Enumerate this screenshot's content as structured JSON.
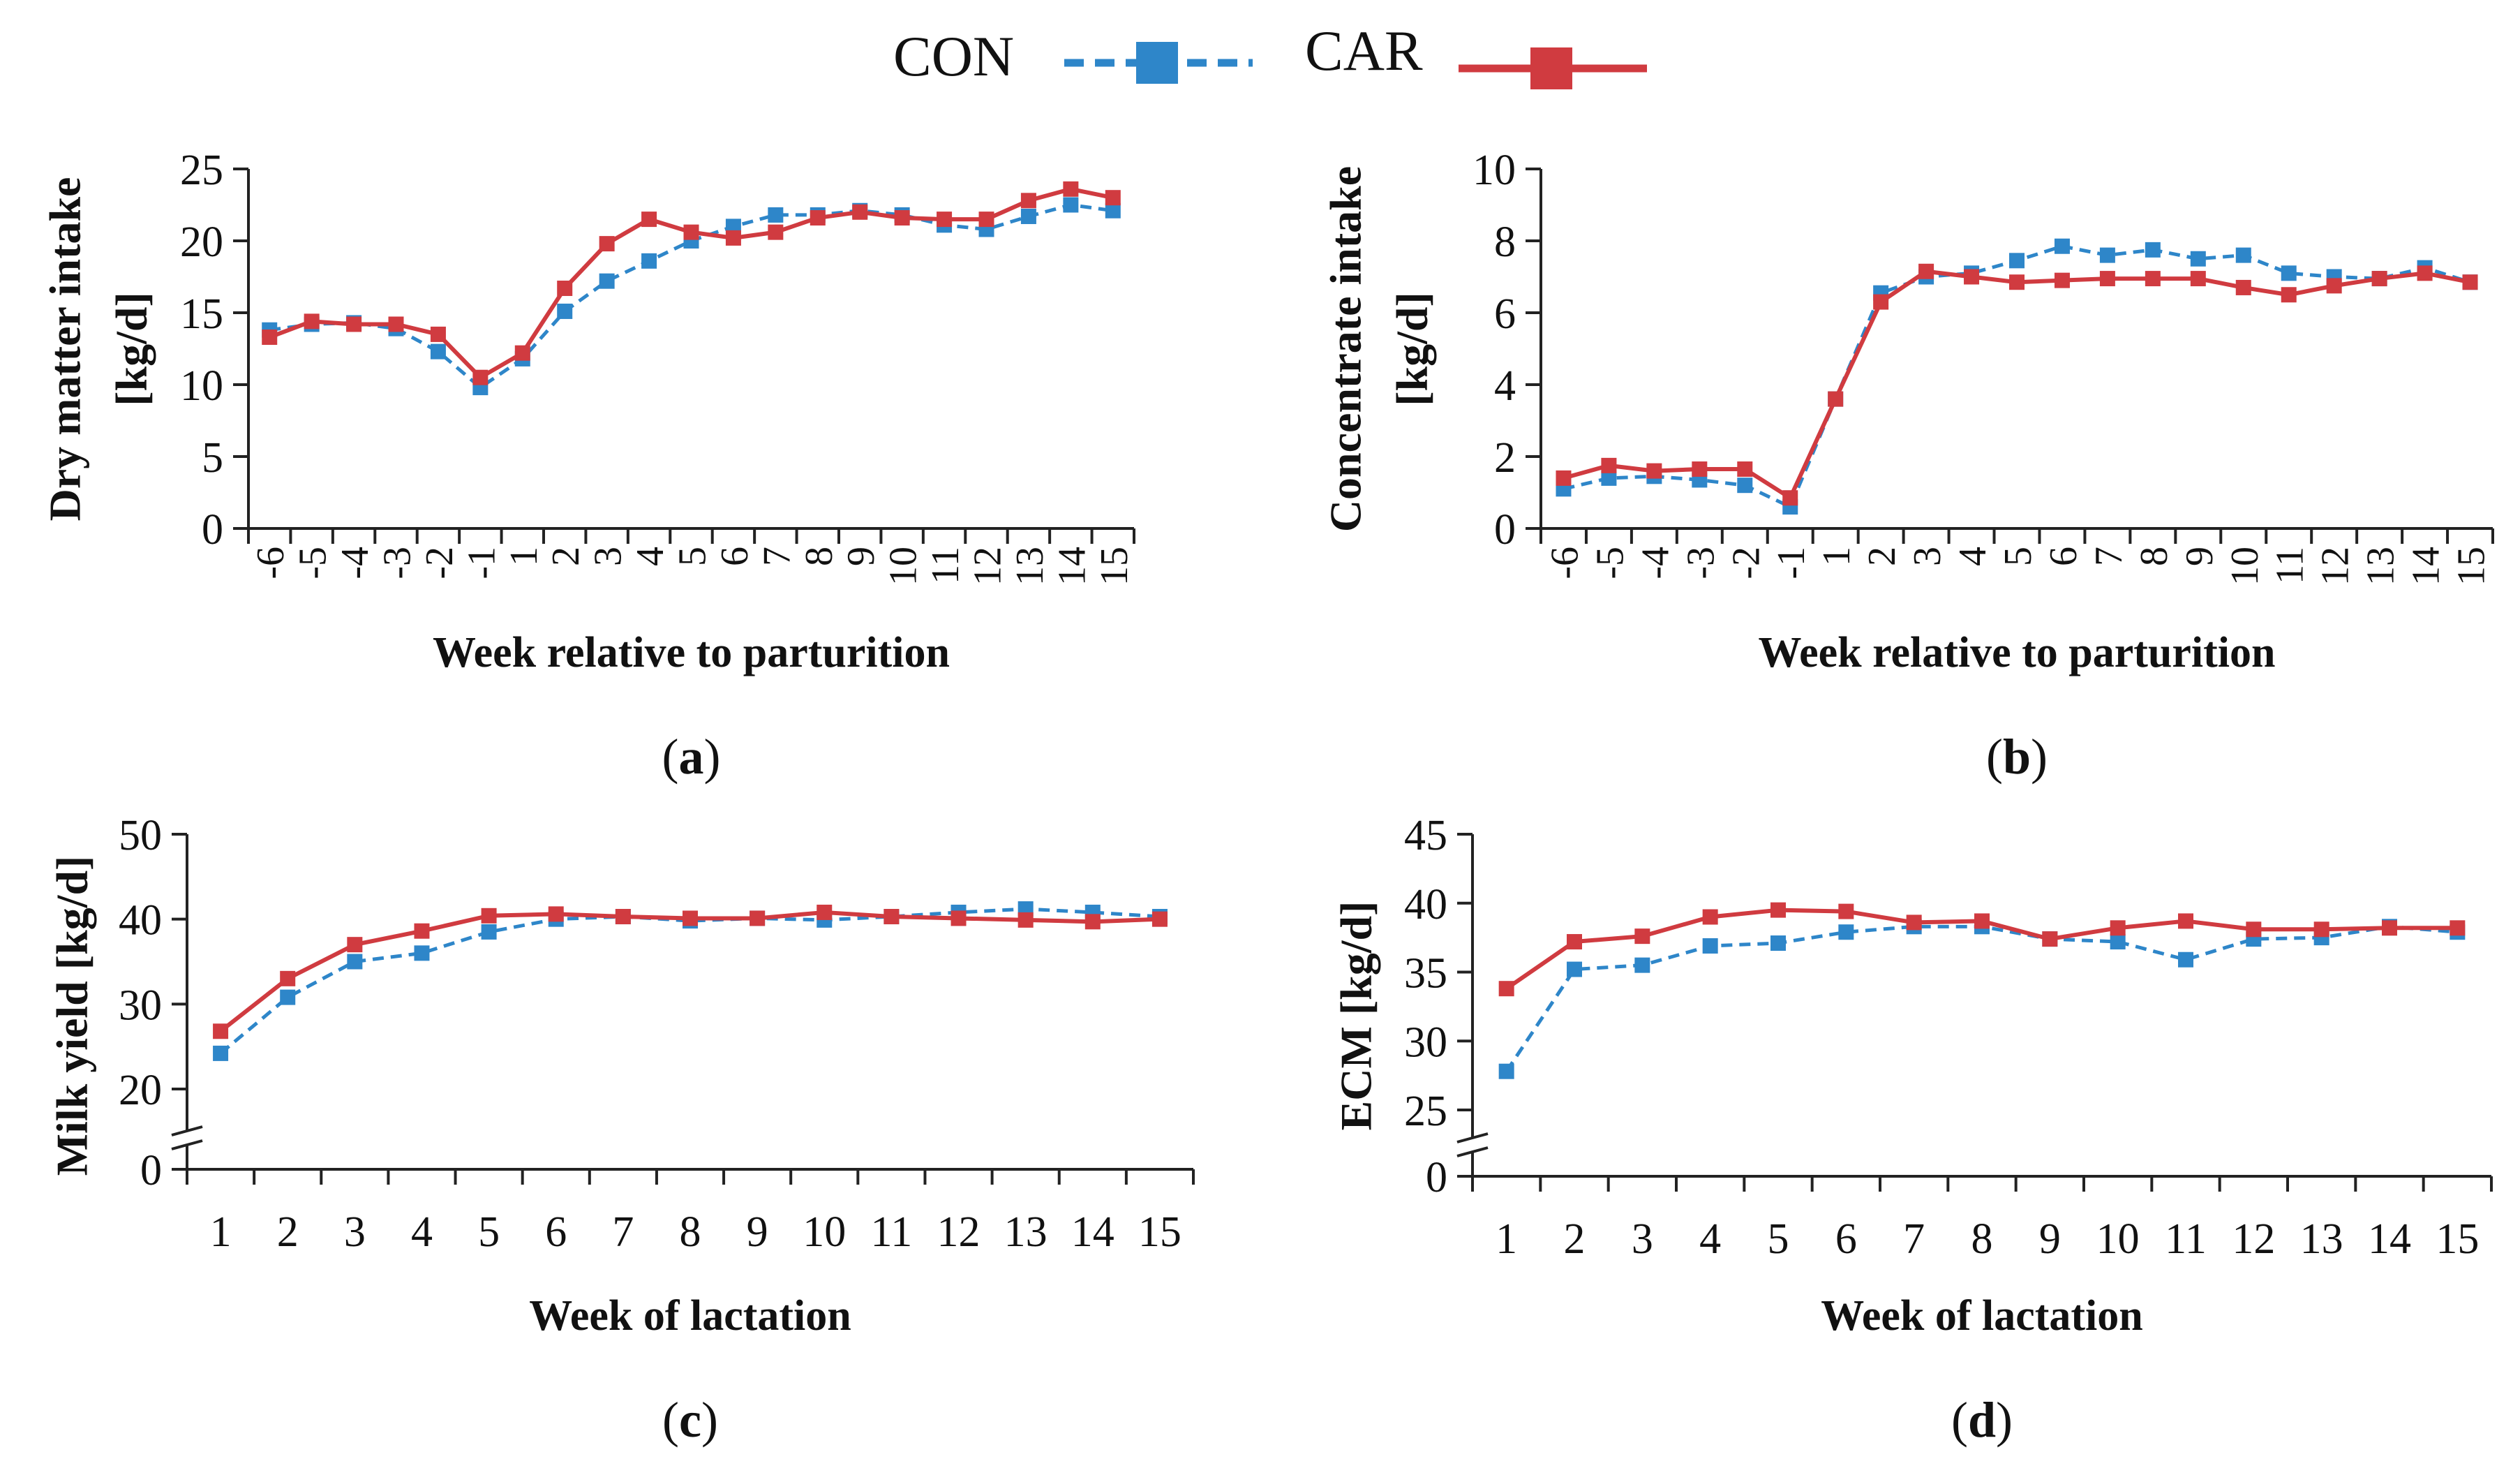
{
  "legend": {
    "con_label": "CON",
    "car_label": "CAR"
  },
  "colors": {
    "con": "#2E86C9",
    "car": "#D03B40",
    "axis": "#222222",
    "text": "#111111"
  },
  "chart_data": [
    {
      "type": "line",
      "panel_label": "(a)",
      "panel_letter": "a",
      "xlabel": "Week relative to parturition",
      "ylabel_line1": "Dry matter intake",
      "ylabel_line2": "[kg/d]",
      "categories": [
        "-6",
        "-5",
        "-4",
        "-3",
        "-2",
        "-1",
        "1",
        "2",
        "3",
        "4",
        "5",
        "6",
        "7",
        "8",
        "9",
        "10",
        "11",
        "12",
        "13",
        "14",
        "15"
      ],
      "rotate_ticks": true,
      "ylim": [
        0,
        25
      ],
      "yticks": [
        0,
        5,
        10,
        15,
        20,
        25
      ],
      "series": [
        {
          "name": "CON",
          "values": [
            13.8,
            14.2,
            14.3,
            13.9,
            12.3,
            9.8,
            11.8,
            15.1,
            17.2,
            18.6,
            20.0,
            21.0,
            21.8,
            21.8,
            22.1,
            21.8,
            21.1,
            20.8,
            21.7,
            22.5,
            22.1
          ]
        },
        {
          "name": "CAR",
          "values": [
            13.3,
            14.4,
            14.2,
            14.2,
            13.5,
            10.5,
            12.2,
            16.7,
            19.8,
            21.5,
            20.6,
            20.2,
            20.6,
            21.6,
            22.0,
            21.6,
            21.5,
            21.5,
            22.8,
            23.6,
            23.0
          ]
        }
      ]
    },
    {
      "type": "line",
      "panel_label": "(b)",
      "panel_letter": "b",
      "xlabel": "Week relative to parturition",
      "ylabel_line1": "Concentrate intake",
      "ylabel_line2": "[kg/d]",
      "categories": [
        "-6",
        "-5",
        "-4",
        "-3",
        "-2",
        "-1",
        "1",
        "2",
        "3",
        "4",
        "5",
        "6",
        "7",
        "8",
        "9",
        "10",
        "11",
        "12",
        "13",
        "14",
        "15"
      ],
      "rotate_ticks": true,
      "ylim": [
        0,
        10
      ],
      "yticks": [
        0,
        2,
        4,
        6,
        8,
        10
      ],
      "series": [
        {
          "name": "CON",
          "values": [
            1.1,
            1.4,
            1.45,
            1.35,
            1.2,
            0.6,
            3.6,
            6.55,
            7.0,
            7.1,
            7.45,
            7.85,
            7.6,
            7.75,
            7.5,
            7.6,
            7.1,
            7.0,
            6.95,
            7.25,
            6.85
          ]
        },
        {
          "name": "CAR",
          "values": [
            1.4,
            1.75,
            1.6,
            1.65,
            1.65,
            0.85,
            3.6,
            6.3,
            7.15,
            7.0,
            6.85,
            6.9,
            6.95,
            6.95,
            6.95,
            6.7,
            6.5,
            6.75,
            6.95,
            7.1,
            6.85
          ]
        }
      ]
    },
    {
      "type": "line",
      "panel_label": "(c)",
      "panel_letter": "c",
      "xlabel": "Week of lactation",
      "ylabel_line1": "Milk yield [kg/d]",
      "ylabel_line2": "",
      "categories": [
        "1",
        "2",
        "3",
        "4",
        "5",
        "6",
        "7",
        "8",
        "9",
        "10",
        "11",
        "12",
        "13",
        "14",
        "15"
      ],
      "rotate_ticks": false,
      "ylim": [
        20,
        50
      ],
      "yticks": [
        20,
        30,
        40,
        50
      ],
      "axis_break": true,
      "break_label": "0",
      "series": [
        {
          "name": "CON",
          "values": [
            24.2,
            30.8,
            35.0,
            36.0,
            38.5,
            40.0,
            40.3,
            39.8,
            40.1,
            39.9,
            40.3,
            40.8,
            41.2,
            40.8,
            40.3
          ]
        },
        {
          "name": "CAR",
          "values": [
            26.8,
            33.0,
            37.0,
            38.6,
            40.4,
            40.6,
            40.3,
            40.1,
            40.1,
            40.8,
            40.3,
            40.1,
            39.9,
            39.7,
            40.0
          ]
        }
      ]
    },
    {
      "type": "line",
      "panel_label": "(d)",
      "panel_letter": "d",
      "xlabel": "Week of lactation",
      "ylabel_line1": "ECM [kg/d]",
      "ylabel_line2": "",
      "categories": [
        "1",
        "2",
        "3",
        "4",
        "5",
        "6",
        "7",
        "8",
        "9",
        "10",
        "11",
        "12",
        "13",
        "14",
        "15"
      ],
      "rotate_ticks": false,
      "ylim": [
        25,
        45
      ],
      "yticks": [
        25,
        30,
        35,
        40,
        45
      ],
      "axis_break": true,
      "break_label": "0",
      "series": [
        {
          "name": "CON",
          "values": [
            27.8,
            35.2,
            35.5,
            36.9,
            37.1,
            37.9,
            38.3,
            38.3,
            37.4,
            37.2,
            35.9,
            37.4,
            37.5,
            38.3,
            37.9
          ]
        },
        {
          "name": "CAR",
          "values": [
            33.8,
            37.2,
            37.6,
            39.0,
            39.5,
            39.4,
            38.6,
            38.7,
            37.4,
            38.2,
            38.7,
            38.1,
            38.1,
            38.2,
            38.2
          ]
        }
      ]
    }
  ]
}
